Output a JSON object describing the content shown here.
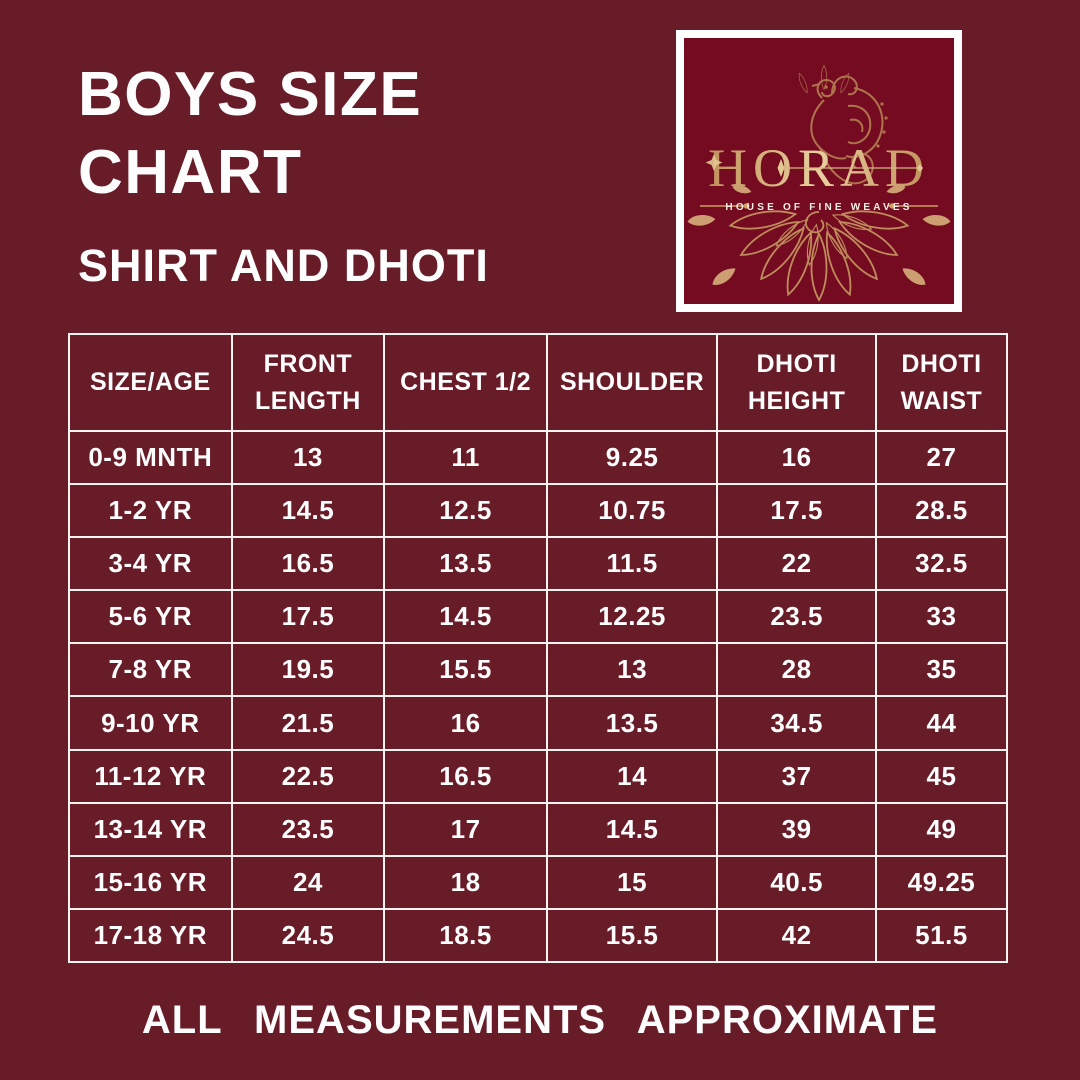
{
  "page": {
    "title_line1": "BOYS SIZE",
    "title_line2": "CHART",
    "subtitle": "SHIRT AND DHOTI",
    "footer": "ALL MEASUREMENTS APPROXIMATE"
  },
  "logo": {
    "brand": "HORAD",
    "tagline": "HOUSE OF FINE WEAVES"
  },
  "colors": {
    "background": "#671c28",
    "logo_background": "#740b21",
    "table_border": "#f7f4f1",
    "text": "#fdfdfd",
    "gold": "#cf9f63",
    "gold_light": "#d9b489"
  },
  "table": {
    "columns": [
      "SIZE/AGE",
      "FRONT LENGTH",
      "CHEST 1/2",
      "SHOULDER",
      "DHOTI HEIGHT",
      "DHOTI WAIST"
    ],
    "rows": [
      [
        "0-9 MNTH",
        "13",
        "11",
        "9.25",
        "16",
        "27"
      ],
      [
        "1-2 YR",
        "14.5",
        "12.5",
        "10.75",
        "17.5",
        "28.5"
      ],
      [
        "3-4 YR",
        "16.5",
        "13.5",
        "11.5",
        "22",
        "32.5"
      ],
      [
        "5-6 YR",
        "17.5",
        "14.5",
        "12.25",
        "23.5",
        "33"
      ],
      [
        "7-8 YR",
        "19.5",
        "15.5",
        "13",
        "28",
        "35"
      ],
      [
        "9-10 YR",
        "21.5",
        "16",
        "13.5",
        "34.5",
        "44"
      ],
      [
        "11-12 YR",
        "22.5",
        "16.5",
        "14",
        "37",
        "45"
      ],
      [
        "13-14 YR",
        "23.5",
        "17",
        "14.5",
        "39",
        "49"
      ],
      [
        "15-16 YR",
        "24",
        "18",
        "15",
        "40.5",
        "49.25"
      ],
      [
        "17-18 YR",
        "24.5",
        "18.5",
        "15.5",
        "42",
        "51.5"
      ]
    ]
  }
}
